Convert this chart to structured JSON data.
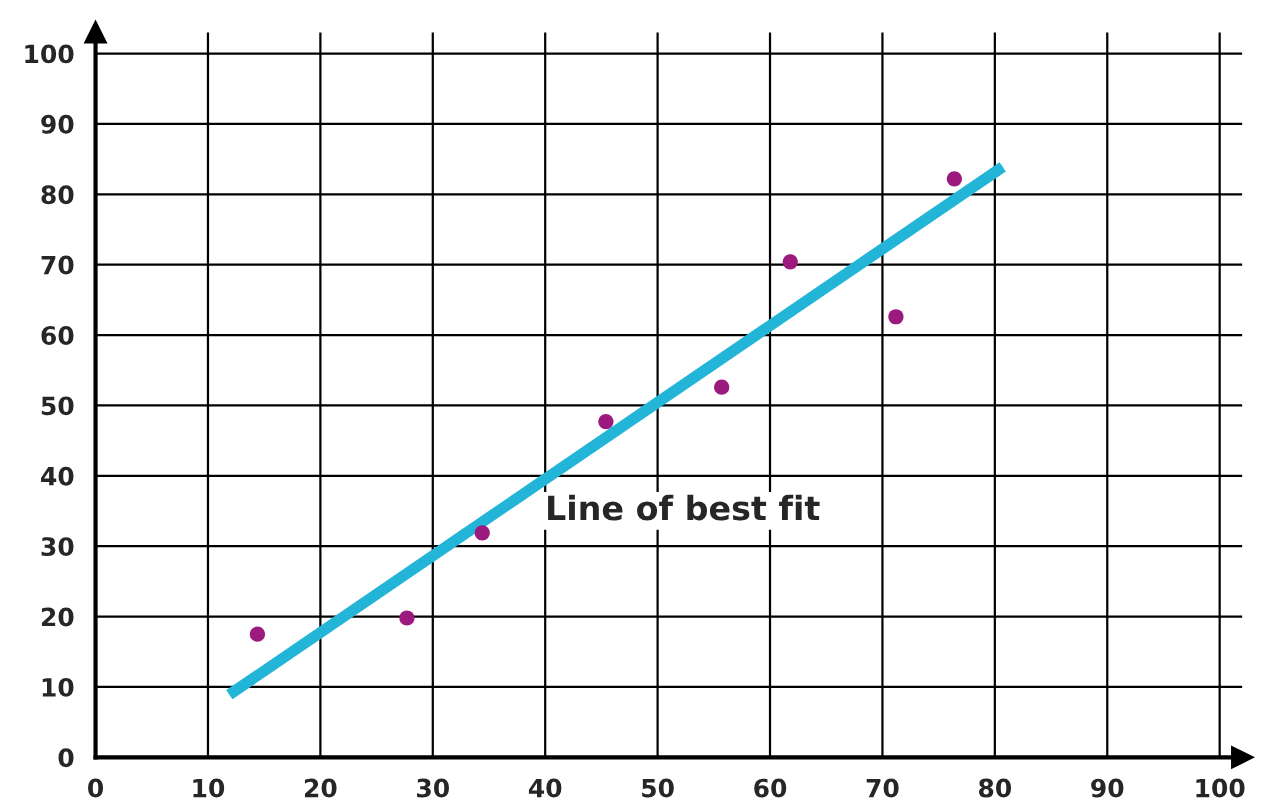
{
  "chart_data": {
    "type": "scatter",
    "series": [
      {
        "color": "#9c1a7e",
        "marker": "circle",
        "x": [
          14.4,
          27.7,
          34.4,
          45.4,
          55.7,
          61.8,
          71.2,
          76.4
        ],
        "values": [
          17.5,
          19.8,
          31.9,
          47.7,
          52.6,
          70.4,
          62.6,
          82.2
        ]
      },
      {
        "type": "line",
        "color": "#22b5d8",
        "marker": "none",
        "x": [
          11.9,
          80.7
        ],
        "values": [
          8.9,
          83.9
        ]
      }
    ],
    "annotations": [
      "Line of best fit"
    ],
    "xlim": [
      0,
      102
    ],
    "ylim": [
      0,
      103
    ],
    "xticks": [
      0,
      10,
      20,
      30,
      40,
      50,
      60,
      70,
      80,
      90,
      100
    ],
    "yticks": [
      0,
      10,
      20,
      30,
      40,
      50,
      60,
      70,
      80,
      90,
      100
    ],
    "grid": true
  }
}
